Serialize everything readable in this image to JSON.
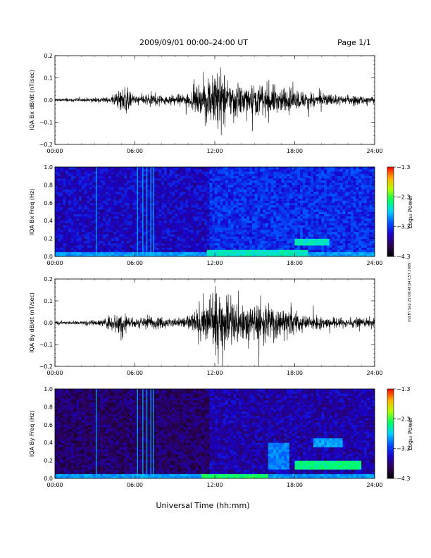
{
  "header": {
    "title": "2009/09/01  00:00–24:00 UT",
    "page": "Page 1/1"
  },
  "footer": {
    "xlabel": "Universal Time (hh:mm)"
  },
  "side_note": "md Fri Sep 25 09:48:04 CST 2009",
  "colors": {
    "trace": "#000000",
    "spectrogram_scale": [
      "#000000",
      "#2b0050",
      "#1a00c8",
      "#0050ff",
      "#00d0ff",
      "#00ff60",
      "#b0ff00",
      "#ffb000",
      "#ff0000"
    ]
  },
  "chart_data": [
    {
      "type": "line",
      "ylabel": "IQA Bx dB/dt (nT/sec)",
      "ylim": [
        -0.2,
        0.2
      ],
      "yticks": [
        "0.2",
        "0.1",
        "0.0",
        "−0.1",
        "−0.2"
      ],
      "x_range_hours": [
        0,
        24
      ],
      "xticks": [
        "00:00",
        "06:00",
        "12:00",
        "18:00",
        "24:00"
      ],
      "envelope": {
        "hours": [
          0,
          2,
          4,
          4.8,
          5.2,
          5.6,
          6,
          7,
          8,
          9,
          10,
          10.5,
          11,
          11.5,
          12,
          12.5,
          13,
          14,
          15,
          16,
          17,
          18,
          19,
          20,
          21,
          22,
          23,
          24
        ],
        "amplitude": [
          0.012,
          0.012,
          0.018,
          0.06,
          0.1,
          0.05,
          0.03,
          0.04,
          0.035,
          0.03,
          0.045,
          0.07,
          0.1,
          0.16,
          0.2,
          0.18,
          0.13,
          0.1,
          0.09,
          0.1,
          0.08,
          0.07,
          0.05,
          0.045,
          0.035,
          0.03,
          0.028,
          0.025
        ]
      }
    },
    {
      "type": "heatmap",
      "ylabel": "IQA Bx Freq (Hz)",
      "ylim": [
        0.0,
        1.0
      ],
      "yticks": [
        "1.0",
        "0.8",
        "0.6",
        "0.4",
        "0.2",
        "0.0"
      ],
      "x_range_hours": [
        0,
        24
      ],
      "xticks": [
        "00:00",
        "06:00",
        "12:00",
        "18:00",
        "24:00"
      ],
      "colorbar": {
        "label": "Log₁₀ Power",
        "range": [
          -4.3,
          -1.3
        ],
        "ticks": [
          "−1.3",
          "−2.3",
          "−3.3",
          "−4.3"
        ]
      },
      "bands": [
        {
          "from_hour": 0,
          "to_hour": 24,
          "freq_max": 0.06,
          "level": 0.45
        },
        {
          "from_hour": 11.5,
          "to_hour": 19,
          "freq_max": 0.08,
          "level": 0.55
        },
        {
          "from_hour": 18,
          "to_hour": 20.5,
          "freq_center": 0.16,
          "width": 0.04,
          "level": 0.55
        }
      ],
      "vertical_lines_hours": [
        3.1,
        6.2,
        6.6,
        6.9,
        7.2,
        7.4
      ],
      "background_level": 0.25
    },
    {
      "type": "line",
      "ylabel": "IQA By dB/dt (nT/sec)",
      "ylim": [
        -0.2,
        0.2
      ],
      "yticks": [
        "0.2",
        "0.1",
        "0.0",
        "−0.1",
        "−0.2"
      ],
      "x_range_hours": [
        0,
        24
      ],
      "xticks": [
        "00:00",
        "06:00",
        "12:00",
        "18:00",
        "24:00"
      ],
      "envelope": {
        "hours": [
          0,
          2,
          3.5,
          4.2,
          5.2,
          5.6,
          6,
          7,
          8,
          9,
          10,
          10.5,
          11,
          11.5,
          12,
          12.5,
          13,
          14,
          15,
          16,
          17,
          18,
          19,
          20,
          21,
          22,
          23,
          24
        ],
        "amplitude": [
          0.01,
          0.012,
          0.02,
          0.05,
          0.08,
          0.04,
          0.03,
          0.05,
          0.035,
          0.03,
          0.05,
          0.08,
          0.11,
          0.14,
          0.2,
          0.17,
          0.15,
          0.13,
          0.11,
          0.13,
          0.1,
          0.07,
          0.05,
          0.04,
          0.035,
          0.03,
          0.03,
          0.028
        ]
      }
    },
    {
      "type": "heatmap",
      "ylabel": "IQA By Freq (Hz)",
      "ylim": [
        0.0,
        1.0
      ],
      "yticks": [
        "1.0",
        "0.8",
        "0.6",
        "0.4",
        "0.2",
        "0.0"
      ],
      "x_range_hours": [
        0,
        24
      ],
      "xticks": [
        "00:00",
        "06:00",
        "12:00",
        "18:00",
        "24:00"
      ],
      "colorbar": {
        "label": "Log₁₀ Power",
        "range": [
          -4.3,
          -1.3
        ],
        "ticks": [
          "−1.3",
          "−2.3",
          "−3.3",
          "−4.3"
        ]
      },
      "bands": [
        {
          "from_hour": 0,
          "to_hour": 24,
          "freq_max": 0.06,
          "level": 0.45
        },
        {
          "from_hour": 11,
          "to_hour": 16,
          "freq_max": 0.04,
          "level": 0.62
        },
        {
          "from_hour": 18,
          "to_hour": 23,
          "freq_center": 0.15,
          "width": 0.04,
          "level": 0.6
        },
        {
          "from_hour": 19.5,
          "to_hour": 21.5,
          "freq_center": 0.4,
          "width": 0.04,
          "level": 0.45
        },
        {
          "from_hour": 16,
          "to_hour": 17.5,
          "freq_center": 0.25,
          "width": 0.15,
          "level": 0.42
        }
      ],
      "vertical_lines_hours": [
        3.1,
        6.2,
        6.6,
        6.9,
        7.2,
        7.4
      ],
      "background_level": 0.15
    }
  ]
}
